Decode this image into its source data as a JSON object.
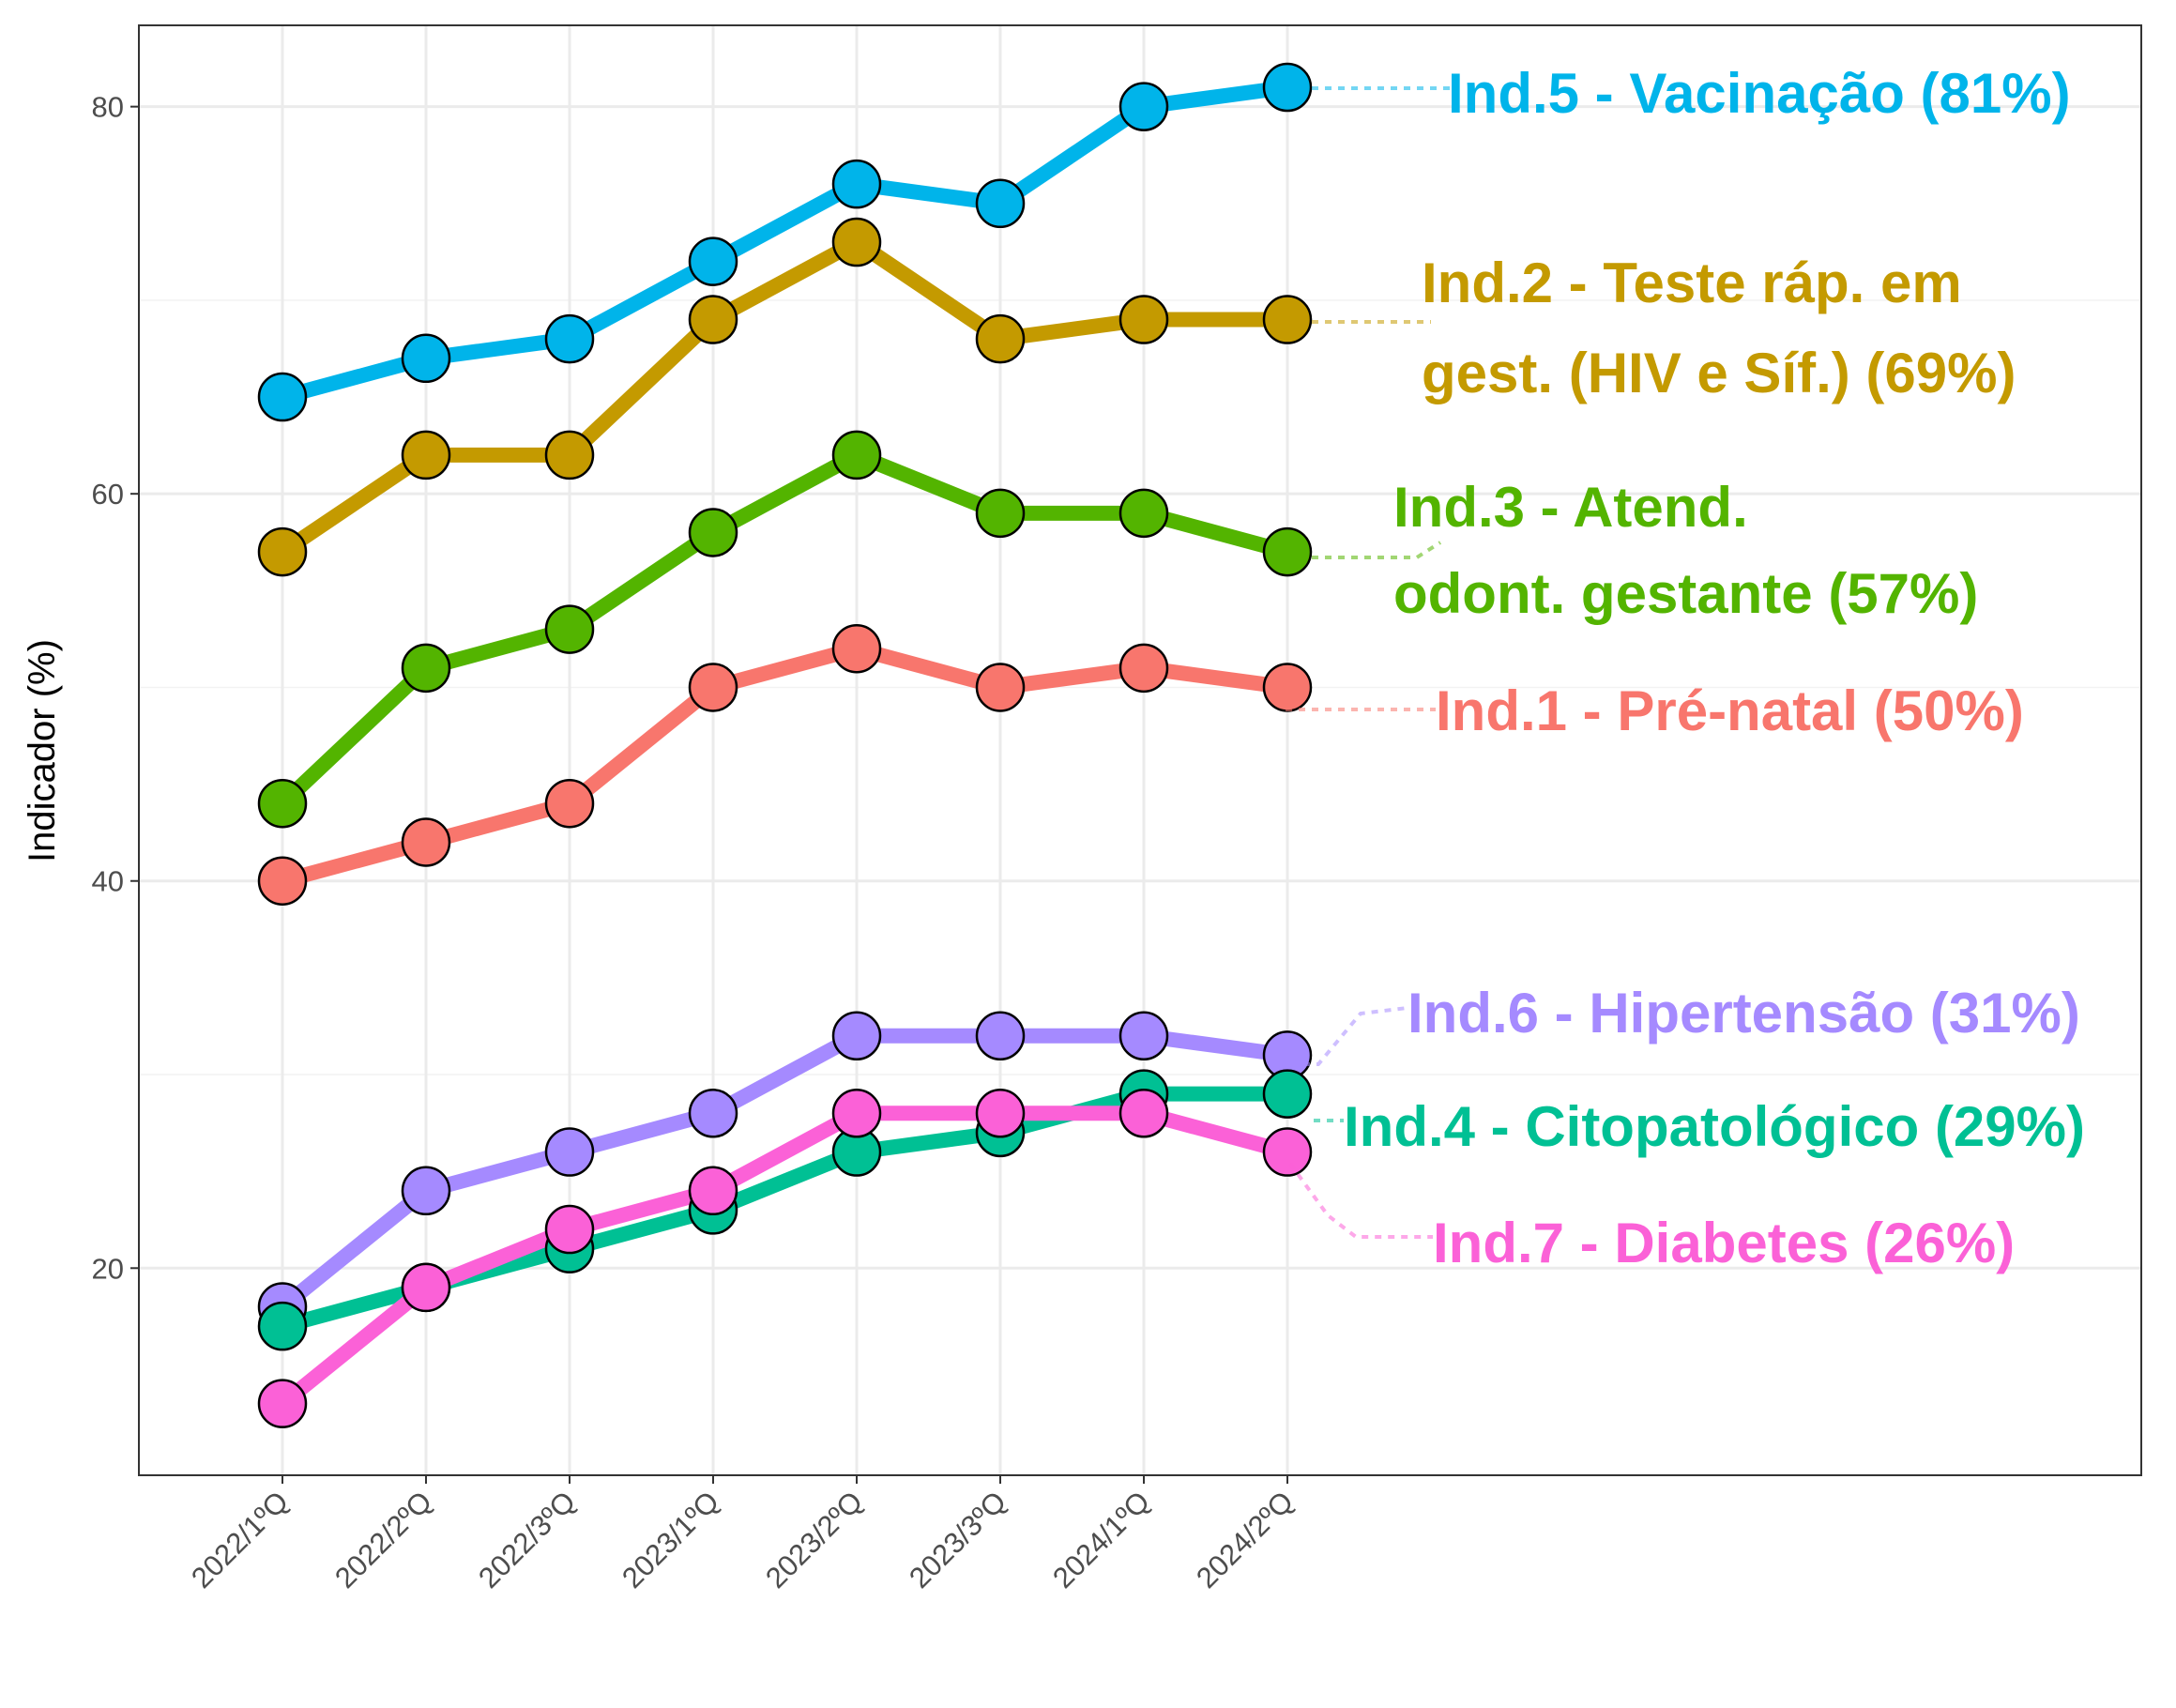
{
  "chart_data": {
    "type": "line",
    "title": "",
    "xlabel": "",
    "ylabel": "Indicador (%)",
    "ylim": [
      9.3,
      84.2
    ],
    "yticks": [
      20,
      40,
      60,
      80
    ],
    "grid": true,
    "legend": "direct labels at line ends",
    "categories": [
      "2022/1ºQ",
      "2022/2ºQ",
      "2022/3ºQ",
      "2023/1ºQ",
      "2023/2ºQ",
      "2023/3ºQ",
      "2024/1ºQ",
      "2024/2ºQ"
    ],
    "series": [
      {
        "key": "ind5",
        "label_lines": [
          "Ind.5 - Vacinação (81%)"
        ],
        "color": "#00B4EA",
        "values": [
          65,
          67,
          68,
          72,
          76,
          75,
          80,
          81
        ]
      },
      {
        "key": "ind2",
        "label_lines": [
          "Ind.2 - Teste ráp. em",
          "gest. (HIV e Síf.) (69%)"
        ],
        "color": "#C49A00",
        "values": [
          57,
          62,
          62,
          69,
          73,
          68,
          69,
          69
        ]
      },
      {
        "key": "ind3",
        "label_lines": [
          "Ind.3 - Atend.",
          "odont. gestante (57%)"
        ],
        "color": "#53B400",
        "values": [
          44,
          51,
          53,
          58,
          62,
          59,
          59,
          57
        ]
      },
      {
        "key": "ind1",
        "label_lines": [
          "Ind.1 - Pré-natal (50%)"
        ],
        "color": "#F8766D",
        "values": [
          40,
          42,
          44,
          50,
          52,
          50,
          51,
          50
        ]
      },
      {
        "key": "ind6",
        "label_lines": [
          "Ind.6 - Hipertensão (31%)"
        ],
        "color": "#A58AFF",
        "values": [
          18,
          24,
          26,
          28,
          32,
          32,
          32,
          31
        ]
      },
      {
        "key": "ind4",
        "label_lines": [
          "Ind.4 - Citopatológico (29%)"
        ],
        "color": "#00C094",
        "values": [
          17,
          19,
          21,
          23,
          26,
          27,
          29,
          29
        ]
      },
      {
        "key": "ind7",
        "label_lines": [
          "Ind.7 - Diabetes (26%)"
        ],
        "color": "#FB61D7",
        "values": [
          13,
          19,
          22,
          24,
          28,
          28,
          28,
          26
        ]
      }
    ]
  }
}
